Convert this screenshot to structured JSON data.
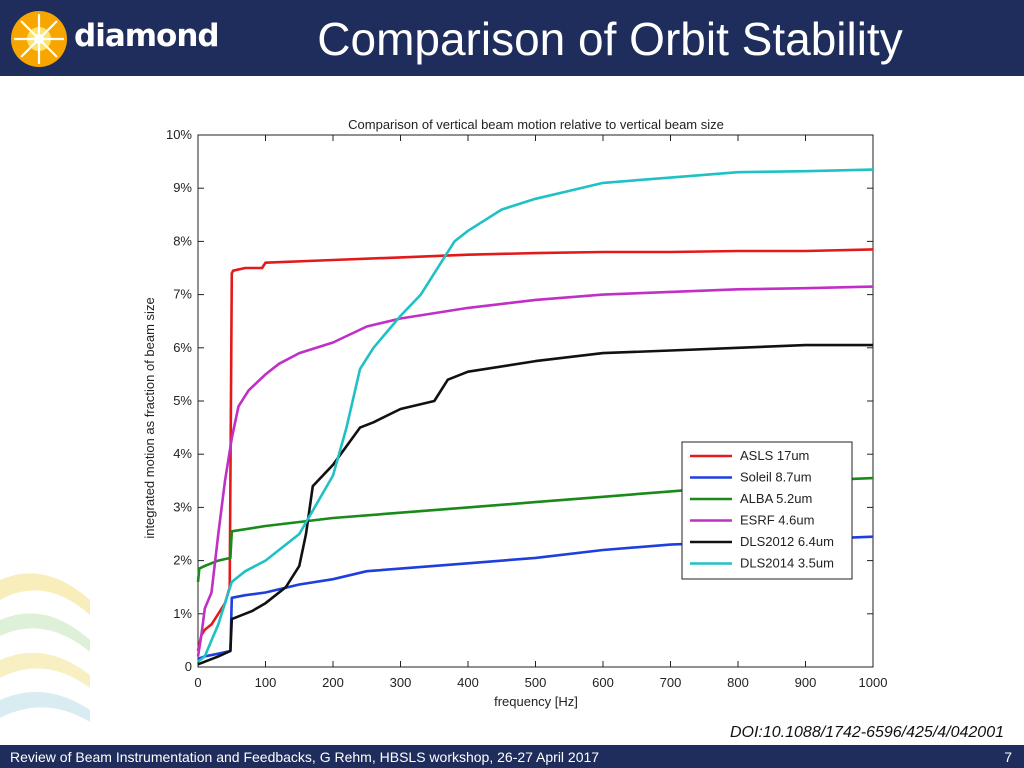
{
  "header": {
    "brand": "diamond",
    "title": "Comparison of Orbit Stability"
  },
  "doi": "DOI:10.1088/1742-6596/425/4/042001",
  "footer": {
    "text": "Review of Beam Instrumentation and Feedbacks, G Rehm, HBSLS workshop, 26-27 April 2017",
    "page": "7"
  },
  "chart_data": {
    "type": "line",
    "title": "Comparison of vertical beam motion relative to vertical beam size",
    "xlabel": "frequency [Hz]",
    "ylabel": "integrated motion as fraction of beam size",
    "xlim": [
      0,
      1000
    ],
    "ylim": [
      0,
      10
    ],
    "xticks": [
      0,
      100,
      200,
      300,
      400,
      500,
      600,
      700,
      800,
      900,
      1000
    ],
    "yticks": [
      0,
      1,
      2,
      3,
      4,
      5,
      6,
      7,
      8,
      9,
      10
    ],
    "ytick_labels": [
      "0",
      "1%",
      "2%",
      "3%",
      "4%",
      "5%",
      "6%",
      "7%",
      "8%",
      "9%",
      "10%"
    ],
    "grid": false,
    "legend_position": "lower-right",
    "series": [
      {
        "name": "ASLS 17um",
        "color": "#e31a1c",
        "x": [
          0,
          5,
          10,
          20,
          30,
          40,
          47,
          50,
          52,
          70,
          95,
          100,
          200,
          300,
          400,
          500,
          600,
          700,
          800,
          900,
          1000
        ],
        "y": [
          0.3,
          0.6,
          0.7,
          0.8,
          1.0,
          1.2,
          1.5,
          7.4,
          7.45,
          7.5,
          7.5,
          7.6,
          7.65,
          7.7,
          7.75,
          7.78,
          7.8,
          7.8,
          7.82,
          7.82,
          7.85
        ]
      },
      {
        "name": "Soleil 8.7um",
        "color": "#1f3fdd",
        "x": [
          0,
          10,
          30,
          48,
          50,
          70,
          100,
          150,
          200,
          250,
          300,
          400,
          500,
          600,
          700,
          800,
          900,
          1000
        ],
        "y": [
          0.15,
          0.2,
          0.25,
          0.3,
          1.3,
          1.35,
          1.4,
          1.55,
          1.65,
          1.8,
          1.85,
          1.95,
          2.05,
          2.2,
          2.3,
          2.35,
          2.4,
          2.45
        ]
      },
      {
        "name": "ALBA 5.2um",
        "color": "#1a8a1a",
        "x": [
          0,
          2,
          10,
          30,
          48,
          50,
          100,
          200,
          300,
          400,
          500,
          600,
          700,
          800,
          900,
          1000
        ],
        "y": [
          1.6,
          1.85,
          1.9,
          2.0,
          2.05,
          2.55,
          2.65,
          2.8,
          2.9,
          3.0,
          3.1,
          3.2,
          3.3,
          3.4,
          3.5,
          3.55
        ]
      },
      {
        "name": "ESRF 4.6um",
        "color": "#c02fc6",
        "x": [
          0,
          5,
          10,
          20,
          30,
          40,
          50,
          60,
          75,
          100,
          120,
          150,
          200,
          250,
          300,
          400,
          500,
          600,
          700,
          800,
          900,
          1000
        ],
        "y": [
          0.2,
          0.6,
          1.1,
          1.4,
          2.5,
          3.5,
          4.3,
          4.9,
          5.2,
          5.5,
          5.7,
          5.9,
          6.1,
          6.4,
          6.55,
          6.75,
          6.9,
          7.0,
          7.05,
          7.1,
          7.12,
          7.15
        ]
      },
      {
        "name": "DLS2012 6.4um",
        "color": "#111111",
        "x": [
          0,
          10,
          30,
          48,
          50,
          80,
          100,
          130,
          150,
          160,
          170,
          200,
          240,
          260,
          300,
          350,
          370,
          400,
          500,
          600,
          700,
          800,
          900,
          1000
        ],
        "y": [
          0.05,
          0.1,
          0.2,
          0.3,
          0.9,
          1.05,
          1.2,
          1.5,
          1.9,
          2.5,
          3.4,
          3.8,
          4.5,
          4.6,
          4.85,
          5.0,
          5.4,
          5.55,
          5.75,
          5.9,
          5.95,
          6.0,
          6.05,
          6.05
        ]
      },
      {
        "name": "DLS2014 3.5um",
        "color": "#1fc1c4",
        "x": [
          0,
          10,
          20,
          30,
          40,
          50,
          70,
          100,
          150,
          200,
          220,
          240,
          260,
          300,
          330,
          360,
          380,
          400,
          450,
          500,
          550,
          600,
          650,
          700,
          800,
          900,
          1000
        ],
        "y": [
          0.1,
          0.2,
          0.5,
          0.8,
          1.2,
          1.6,
          1.8,
          2.0,
          2.5,
          3.6,
          4.5,
          5.6,
          6.0,
          6.6,
          7.0,
          7.6,
          8.0,
          8.2,
          8.6,
          8.8,
          8.95,
          9.1,
          9.15,
          9.2,
          9.3,
          9.32,
          9.35
        ]
      }
    ]
  }
}
